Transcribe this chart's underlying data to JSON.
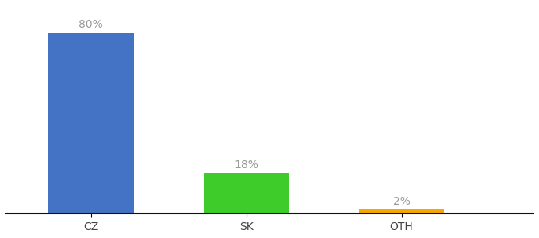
{
  "categories": [
    "CZ",
    "SK",
    "OTH"
  ],
  "values": [
    80,
    18,
    2
  ],
  "bar_colors": [
    "#4472c4",
    "#3dcc2a",
    "#f5a800"
  ],
  "labels": [
    "80%",
    "18%",
    "2%"
  ],
  "background_color": "#ffffff",
  "ylim": [
    0,
    92
  ],
  "bar_width": 0.55,
  "label_fontsize": 10,
  "tick_fontsize": 10,
  "label_color": "#999999"
}
